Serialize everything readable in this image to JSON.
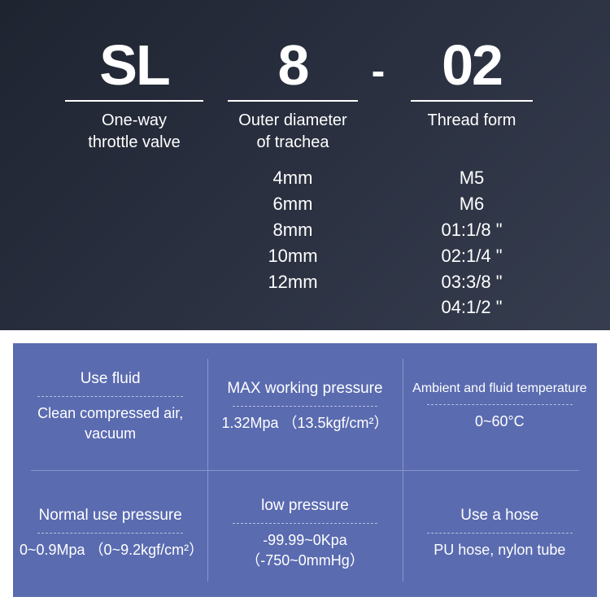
{
  "colors": {
    "top_bg_start": "#1e2430",
    "top_bg_end": "#363d4e",
    "bottom_frame": "#ffffff",
    "spec_bg": "#5a6bb0",
    "spec_divider": "#8a97c9",
    "spec_dashed": "#b8c0dc",
    "text": "#ffffff"
  },
  "header": {
    "columns": [
      {
        "code": "SL",
        "label_line1": "One-way",
        "label_line2": "throttle valve",
        "values": []
      },
      {
        "code": "8",
        "label_line1": "Outer diameter",
        "label_line2": "of trachea",
        "values": [
          "4mm",
          "6mm",
          "8mm",
          "10mm",
          "12mm"
        ]
      },
      {
        "code": "02",
        "label_line1": "Thread form",
        "label_line2": "",
        "values": [
          "M5",
          "M6",
          "01:1/8 \"",
          "02:1/4 \"",
          "03:3/8 \"",
          "04:1/2 \""
        ]
      }
    ],
    "separator": "-",
    "big_fontsize": 70,
    "sublabel_fontsize": 20,
    "values_fontsize": 22
  },
  "spec": {
    "cells": [
      {
        "title": "Use fluid",
        "value": "Clean compressed air, vacuum"
      },
      {
        "title": "MAX working pressure",
        "value": "1.32Mpa （13.5kgf/cm²）"
      },
      {
        "title": "Ambient and fluid temperature",
        "value": "0~60°C",
        "title_small": true
      },
      {
        "title": "Normal use pressure",
        "value": "0~0.9Mpa （0~9.2kgf/cm²）"
      },
      {
        "title": "low pressure",
        "value": "-99.99~0Kpa （-750~0mmHg）"
      },
      {
        "title": "Use a hose",
        "value": "PU hose, nylon tube"
      }
    ],
    "title_fontsize": 19,
    "value_fontsize": 18
  }
}
